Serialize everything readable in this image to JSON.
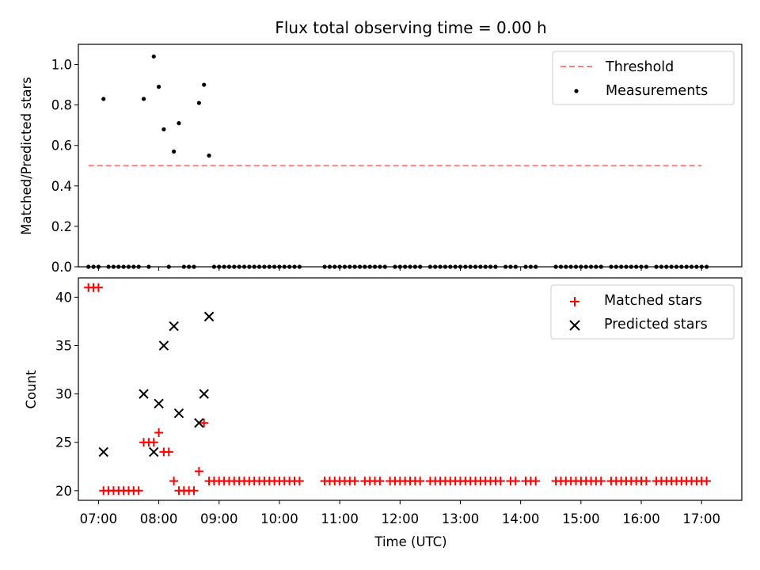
{
  "colors": {
    "threshold": "#ff7f7f",
    "measurements": "#000000",
    "matched": "#ff0000",
    "predicted": "#000000"
  },
  "chart_data": [
    {
      "type": "scatter",
      "title": "Flux total observing time = 0.00 h",
      "xlabel": "",
      "ylabel": "Matched/Predicted stars",
      "xlim": [
        "06:40",
        "17:40"
      ],
      "ylim": [
        0,
        1.1
      ],
      "yticks": [
        0.0,
        0.2,
        0.4,
        0.6,
        0.8,
        1.0
      ],
      "ytick_labels": [
        "0.0",
        "0.2",
        "0.4",
        "0.6",
        "0.8",
        "1.0"
      ],
      "legend": {
        "position": "upper right",
        "entries": [
          "Threshold",
          "Measurements"
        ]
      },
      "threshold": {
        "name": "Threshold",
        "y": 0.5,
        "x": [
          "06:50",
          "17:00"
        ]
      },
      "series": [
        {
          "name": "Measurements",
          "points": [
            [
              "07:05",
              0.83
            ],
            [
              "07:45",
              0.83
            ],
            [
              "07:55",
              1.04
            ],
            [
              "08:00",
              0.89
            ],
            [
              "08:05",
              0.68
            ],
            [
              "08:15",
              0.57
            ],
            [
              "08:20",
              0.71
            ],
            [
              "08:40",
              0.81
            ],
            [
              "08:45",
              0.9
            ],
            [
              "08:50",
              0.55
            ]
          ],
          "zero_times": [
            "06:50",
            "06:55",
            "07:00",
            "07:10",
            "07:15",
            "07:20",
            "07:25",
            "07:30",
            "07:35",
            "07:40",
            "07:50",
            "08:10",
            "08:25",
            "08:30",
            "08:35",
            "08:55",
            "09:00",
            "09:05",
            "09:10",
            "09:15",
            "09:20",
            "09:25",
            "09:30",
            "09:35",
            "09:40",
            "09:45",
            "09:50",
            "09:55",
            "10:00",
            "10:05",
            "10:10",
            "10:15",
            "10:20",
            "10:45",
            "10:50",
            "10:55",
            "11:00",
            "11:05",
            "11:10",
            "11:15",
            "11:20",
            "11:25",
            "11:30",
            "11:35",
            "11:40",
            "11:45",
            "11:55",
            "12:00",
            "12:05",
            "12:10",
            "12:15",
            "12:20",
            "12:30",
            "12:35",
            "12:40",
            "12:45",
            "12:50",
            "12:55",
            "13:00",
            "13:05",
            "13:10",
            "13:15",
            "13:20",
            "13:25",
            "13:30",
            "13:35",
            "13:45",
            "13:50",
            "13:55",
            "14:05",
            "14:10",
            "14:15",
            "14:35",
            "14:40",
            "14:45",
            "14:50",
            "14:55",
            "15:00",
            "15:05",
            "15:10",
            "15:15",
            "15:20",
            "15:30",
            "15:35",
            "15:40",
            "15:45",
            "15:50",
            "15:55",
            "16:00",
            "16:05",
            "16:15",
            "16:20",
            "16:25",
            "16:30",
            "16:35",
            "16:40",
            "16:45",
            "16:50",
            "16:55",
            "17:00",
            "17:05"
          ]
        }
      ]
    },
    {
      "type": "scatter",
      "title": "",
      "xlabel": "Time (UTC)",
      "ylabel": "Count",
      "xlim": [
        "06:40",
        "17:40"
      ],
      "ylim": [
        19,
        42
      ],
      "xticks": [
        "07:00",
        "08:00",
        "09:00",
        "10:00",
        "11:00",
        "12:00",
        "13:00",
        "14:00",
        "15:00",
        "16:00",
        "17:00"
      ],
      "yticks": [
        20,
        25,
        30,
        35,
        40
      ],
      "ytick_labels": [
        "20",
        "25",
        "30",
        "35",
        "40"
      ],
      "legend": {
        "position": "upper right",
        "entries": [
          "Matched stars",
          "Predicted stars"
        ]
      },
      "series": [
        {
          "name": "Matched stars",
          "points": [
            [
              "06:50",
              41
            ],
            [
              "06:55",
              41
            ],
            [
              "07:00",
              41
            ],
            [
              "07:05",
              20
            ],
            [
              "07:10",
              20
            ],
            [
              "07:15",
              20
            ],
            [
              "07:20",
              20
            ],
            [
              "07:25",
              20
            ],
            [
              "07:30",
              20
            ],
            [
              "07:35",
              20
            ],
            [
              "07:40",
              20
            ],
            [
              "07:45",
              25
            ],
            [
              "07:50",
              25
            ],
            [
              "07:55",
              25
            ],
            [
              "08:00",
              26
            ],
            [
              "08:05",
              24
            ],
            [
              "08:10",
              24
            ],
            [
              "08:15",
              21
            ],
            [
              "08:20",
              20
            ],
            [
              "08:25",
              20
            ],
            [
              "08:30",
              20
            ],
            [
              "08:35",
              20
            ],
            [
              "08:40",
              22
            ],
            [
              "08:45",
              27
            ],
            [
              "08:50",
              21
            ],
            [
              "08:55",
              21
            ],
            [
              "09:00",
              21
            ],
            [
              "09:05",
              21
            ],
            [
              "09:10",
              21
            ],
            [
              "09:15",
              21
            ],
            [
              "09:20",
              21
            ],
            [
              "09:25",
              21
            ],
            [
              "09:30",
              21
            ],
            [
              "09:35",
              21
            ],
            [
              "09:40",
              21
            ],
            [
              "09:45",
              21
            ],
            [
              "09:50",
              21
            ],
            [
              "09:55",
              21
            ],
            [
              "10:00",
              21
            ],
            [
              "10:05",
              21
            ],
            [
              "10:10",
              21
            ],
            [
              "10:15",
              21
            ],
            [
              "10:20",
              21
            ],
            [
              "10:45",
              21
            ],
            [
              "10:50",
              21
            ],
            [
              "10:55",
              21
            ],
            [
              "11:00",
              21
            ],
            [
              "11:05",
              21
            ],
            [
              "11:10",
              21
            ],
            [
              "11:15",
              21
            ],
            [
              "11:25",
              21
            ],
            [
              "11:30",
              21
            ],
            [
              "11:35",
              21
            ],
            [
              "11:40",
              21
            ],
            [
              "11:50",
              21
            ],
            [
              "11:55",
              21
            ],
            [
              "12:00",
              21
            ],
            [
              "12:05",
              21
            ],
            [
              "12:10",
              21
            ],
            [
              "12:15",
              21
            ],
            [
              "12:20",
              21
            ],
            [
              "12:30",
              21
            ],
            [
              "12:35",
              21
            ],
            [
              "12:40",
              21
            ],
            [
              "12:45",
              21
            ],
            [
              "12:50",
              21
            ],
            [
              "12:55",
              21
            ],
            [
              "13:00",
              21
            ],
            [
              "13:05",
              21
            ],
            [
              "13:10",
              21
            ],
            [
              "13:15",
              21
            ],
            [
              "13:20",
              21
            ],
            [
              "13:25",
              21
            ],
            [
              "13:30",
              21
            ],
            [
              "13:35",
              21
            ],
            [
              "13:40",
              21
            ],
            [
              "13:50",
              21
            ],
            [
              "13:55",
              21
            ],
            [
              "14:05",
              21
            ],
            [
              "14:10",
              21
            ],
            [
              "14:15",
              21
            ],
            [
              "14:35",
              21
            ],
            [
              "14:40",
              21
            ],
            [
              "14:45",
              21
            ],
            [
              "14:50",
              21
            ],
            [
              "14:55",
              21
            ],
            [
              "15:00",
              21
            ],
            [
              "15:05",
              21
            ],
            [
              "15:10",
              21
            ],
            [
              "15:15",
              21
            ],
            [
              "15:20",
              21
            ],
            [
              "15:30",
              21
            ],
            [
              "15:35",
              21
            ],
            [
              "15:40",
              21
            ],
            [
              "15:45",
              21
            ],
            [
              "15:50",
              21
            ],
            [
              "15:55",
              21
            ],
            [
              "16:00",
              21
            ],
            [
              "16:05",
              21
            ],
            [
              "16:15",
              21
            ],
            [
              "16:20",
              21
            ],
            [
              "16:25",
              21
            ],
            [
              "16:30",
              21
            ],
            [
              "16:35",
              21
            ],
            [
              "16:40",
              21
            ],
            [
              "16:45",
              21
            ],
            [
              "16:50",
              21
            ],
            [
              "16:55",
              21
            ],
            [
              "17:00",
              21
            ],
            [
              "17:05",
              21
            ]
          ]
        },
        {
          "name": "Predicted stars",
          "points": [
            [
              "07:05",
              24
            ],
            [
              "07:45",
              30
            ],
            [
              "07:55",
              24
            ],
            [
              "08:00",
              29
            ],
            [
              "08:05",
              35
            ],
            [
              "08:15",
              37
            ],
            [
              "08:20",
              28
            ],
            [
              "08:40",
              27
            ],
            [
              "08:45",
              30
            ],
            [
              "08:50",
              38
            ]
          ]
        }
      ]
    }
  ]
}
